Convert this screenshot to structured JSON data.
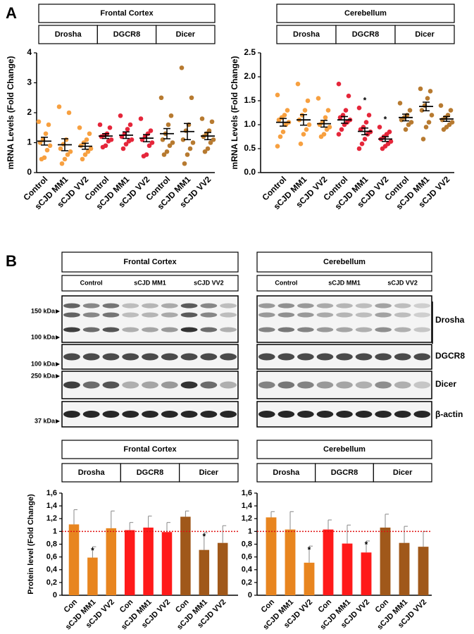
{
  "panel_labels": [
    "A",
    "B"
  ],
  "blots": {
    "panels": [
      {
        "title": "Frontal Cortex",
        "lanes": [
          "Control",
          "sCJD MM1",
          "sCJD VV2"
        ]
      },
      {
        "title": "Cerebellum",
        "lanes": [
          "Control",
          "sCJD MM1",
          "sCJD VV2"
        ]
      }
    ],
    "markers": [
      "150 kDa",
      "100 kDa",
      "100 kDa",
      "250 kDa",
      "37 kDa"
    ],
    "proteins": [
      "Drosha",
      "DGCR8",
      "Dicer",
      "β-actin"
    ]
  },
  "chart_data": [
    {
      "type": "dot",
      "title": "Frontal Cortex",
      "ylabel": "mRNA Levels (Fold Change)",
      "groups": [
        "Drosha",
        "DGCR8",
        "Dicer"
      ],
      "group_colors": [
        "#f7a040",
        "#e5263a",
        "#b77a30"
      ],
      "categories": [
        "Control",
        "sCJD MM1",
        "sCJD VV2",
        "Control",
        "sCJD MM1",
        "sCJD VV2",
        "Control",
        "sCJD MM1",
        "sCJD VV2"
      ],
      "points": [
        [
          1.7,
          1.6,
          1.3,
          1.1,
          1.0,
          0.9,
          0.75,
          0.5,
          0.45
        ],
        [
          2.2,
          2.0,
          1.1,
          0.95,
          0.8,
          0.7,
          0.6,
          0.45,
          0.3
        ],
        [
          1.5,
          1.3,
          1.1,
          1.0,
          0.9,
          0.8,
          0.7,
          0.6,
          0.45
        ],
        [
          1.6,
          1.5,
          1.3,
          1.25,
          1.2,
          1.1,
          1.05,
          0.9,
          0.85
        ],
        [
          1.9,
          1.6,
          1.45,
          1.3,
          1.2,
          1.1,
          1.05,
          0.95,
          0.8
        ],
        [
          1.8,
          1.4,
          1.3,
          1.2,
          1.1,
          1.0,
          0.9,
          0.6,
          0.55
        ],
        [
          2.5,
          1.9,
          1.6,
          1.3,
          1.1,
          1.0,
          0.9,
          0.7,
          0.6
        ],
        [
          3.5,
          2.5,
          1.6,
          1.4,
          1.1,
          1.0,
          0.8,
          0.6,
          0.3
        ],
        [
          1.8,
          1.7,
          1.4,
          1.3,
          1.2,
          1.1,
          1.0,
          0.8,
          0.7
        ]
      ],
      "means": [
        1.05,
        0.93,
        0.88,
        1.22,
        1.25,
        1.15,
        1.3,
        1.37,
        1.22
      ],
      "sem": [
        0.13,
        0.2,
        0.1,
        0.08,
        0.11,
        0.12,
        0.17,
        0.27,
        0.12
      ],
      "significance": [
        null,
        null,
        null,
        null,
        null,
        null,
        null,
        null,
        null
      ],
      "ylim": [
        0,
        4
      ],
      "yticks": [
        0,
        1,
        2,
        3,
        4
      ]
    },
    {
      "type": "dot",
      "title": "Cerebellum",
      "ylabel": "mRNA Levels (Fold Change)",
      "groups": [
        "Drosha",
        "DGCR8",
        "Dicer"
      ],
      "group_colors": [
        "#f7a040",
        "#e5263a",
        "#b77a30"
      ],
      "categories": [
        "Control",
        "sCJD MM1",
        "sCJD VV2",
        "Control",
        "sCJD MM1",
        "sCJD VV2",
        "Control",
        "sCJD MM1",
        "sCJD VV2"
      ],
      "points": [
        [
          1.62,
          1.3,
          1.2,
          1.15,
          1.1,
          1.05,
          1.0,
          0.85,
          0.75,
          0.55
        ],
        [
          1.85,
          1.5,
          1.3,
          1.2,
          1.1,
          1.0,
          0.9,
          0.8,
          0.6
        ],
        [
          1.55,
          1.3,
          1.15,
          1.05,
          1.0,
          0.95,
          0.9,
          0.8,
          0.75
        ],
        [
          1.85,
          1.6,
          1.3,
          1.2,
          1.15,
          1.1,
          1.05,
          1.0,
          0.9,
          0.8
        ],
        [
          1.35,
          1.2,
          1.05,
          0.95,
          0.9,
          0.85,
          0.8,
          0.7,
          0.6,
          0.5
        ],
        [
          0.95,
          0.85,
          0.8,
          0.75,
          0.7,
          0.65,
          0.6,
          0.55,
          0.5
        ],
        [
          1.45,
          1.3,
          1.2,
          1.15,
          1.1,
          1.05,
          1.0,
          0.9
        ],
        [
          1.75,
          1.7,
          1.55,
          1.4,
          1.3,
          1.2,
          1.05,
          0.95,
          0.7
        ],
        [
          1.4,
          1.3,
          1.2,
          1.15,
          1.1,
          1.05,
          1.0,
          0.95,
          0.9
        ]
      ],
      "means": [
        1.05,
        1.1,
        1.02,
        1.1,
        0.86,
        0.7,
        1.15,
        1.38,
        1.12
      ],
      "sem": [
        0.08,
        0.11,
        0.07,
        0.07,
        0.07,
        0.05,
        0.07,
        0.09,
        0.05
      ],
      "significance": [
        null,
        null,
        null,
        null,
        "*",
        "*",
        null,
        null,
        null
      ],
      "ylim": [
        0,
        2.5
      ],
      "yticks": [
        {
          "value": 0,
          "label": "0.0"
        },
        {
          "value": 0.5,
          "label": "0.5"
        },
        {
          "value": 1,
          "label": "1.0"
        },
        {
          "value": 1.5,
          "label": "1.5"
        },
        {
          "value": 2,
          "label": "2.0"
        },
        {
          "value": 2.5,
          "label": "2.5"
        }
      ]
    },
    {
      "type": "bar",
      "title": "Frontal Cortex",
      "ylabel": "Protein level (Fold Change)",
      "groups": [
        "Drosha",
        "DGCR8",
        "Dicer"
      ],
      "group_colors": [
        "#e8851f",
        "#ff1a1a",
        "#a0581a"
      ],
      "categories": [
        "Con",
        "sCJD MM1",
        "sCJD VV2",
        "Con",
        "sCJD MM1",
        "sCJD VV2",
        "Con",
        "sCJD MM1",
        "sCJD VV2"
      ],
      "values": [
        1.11,
        0.59,
        1.05,
        1.02,
        1.06,
        0.99,
        1.23,
        0.71,
        0.82
      ],
      "errors": [
        0.23,
        0.17,
        0.27,
        0.12,
        0.18,
        0.15,
        0.09,
        0.27,
        0.27
      ],
      "significance": [
        null,
        "*",
        null,
        null,
        null,
        null,
        null,
        "*",
        null
      ],
      "reference_line": 1,
      "reference_color": "#e01010",
      "ylim": [
        0,
        1.6
      ],
      "yticks": [
        0,
        {
          "value": 0.2,
          "label": "0,2"
        },
        {
          "value": 0.4,
          "label": "0,4"
        },
        {
          "value": 0.6,
          "label": "0,6"
        },
        {
          "value": 0.8,
          "label": "0,8"
        },
        1,
        {
          "value": 1.2,
          "label": "1,2"
        },
        {
          "value": 1.4,
          "label": "1,4"
        },
        {
          "value": 1.6,
          "label": "1,6"
        }
      ]
    },
    {
      "type": "bar",
      "title": "Cerebellum",
      "groups": [
        "Drosha",
        "DGCR8",
        "Dicer"
      ],
      "group_colors": [
        "#e8851f",
        "#ff1a1a",
        "#a0581a"
      ],
      "categories": [
        "Con",
        "sCJD MM1",
        "sCJD VV2",
        "Con",
        "sCJD MM1",
        "sCJD VV2",
        "Con",
        "sCJD MM1",
        "sCJD VV2"
      ],
      "values": [
        1.22,
        1.03,
        0.51,
        1.03,
        0.81,
        0.67,
        1.06,
        0.82,
        0.76
      ],
      "errors": [
        0.09,
        0.28,
        0.26,
        0.15,
        0.29,
        0.18,
        0.21,
        0.26,
        0.24
      ],
      "significance": [
        null,
        null,
        "*",
        null,
        null,
        "*",
        null,
        null,
        null
      ],
      "reference_line": 1,
      "reference_color": "#e01010",
      "ylim": [
        0,
        1.6
      ],
      "yticks": [
        0,
        {
          "value": 0.2,
          "label": "0,2"
        },
        {
          "value": 0.4,
          "label": "0,4"
        },
        {
          "value": 0.6,
          "label": "0,6"
        },
        {
          "value": 0.8,
          "label": "0,8"
        },
        1,
        {
          "value": 1.2,
          "label": "1,2"
        },
        {
          "value": 1.4,
          "label": "1,4"
        },
        {
          "value": 1.6,
          "label": "1,6"
        }
      ]
    }
  ]
}
